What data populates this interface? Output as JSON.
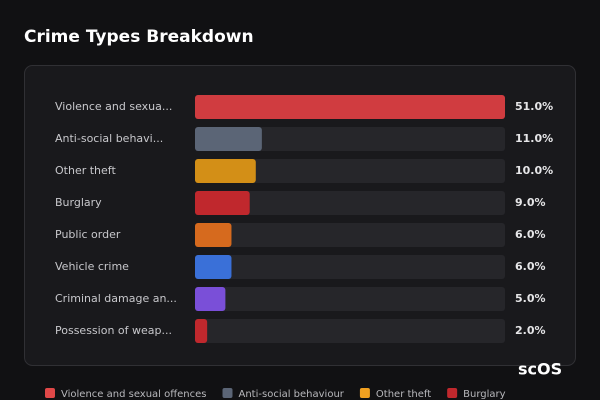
{
  "chart_data": {
    "type": "bar",
    "orientation": "horizontal",
    "title": "Crime Types Breakdown",
    "categories": [
      "Violence and sexua...",
      "Anti-social behavi...",
      "Other theft",
      "Burglary",
      "Public order",
      "Vehicle crime",
      "Criminal damage an...",
      "Possession of weap..."
    ],
    "values": [
      51,
      11,
      10,
      9,
      6,
      6,
      5,
      2
    ],
    "value_labels": [
      "51.0%",
      "11.0%",
      "10.0%",
      "9.0%",
      "6.0%",
      "6.0%",
      "5.0%",
      "2.0%"
    ],
    "colors": [
      "#d03c40",
      "#5b6576",
      "#d38f17",
      "#c0282d",
      "#d66a1e",
      "#3a70d8",
      "#7a4fd8",
      "#c0282d"
    ],
    "legend": [
      {
        "name": "Violence and sexual offences",
        "color": "#e04848"
      },
      {
        "name": "Anti-social behaviour",
        "color": "#5b6576"
      },
      {
        "name": "Other theft",
        "color": "#f0a020"
      },
      {
        "name": "Burglary",
        "color": "#c0282d"
      }
    ],
    "watermark": "scOS"
  }
}
